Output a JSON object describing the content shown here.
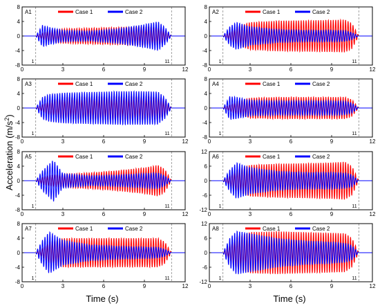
{
  "figure": {
    "ylabel": "Acceleration (m/s",
    "ylabel_sup": "2",
    "ylabel_close": ")",
    "xlabel_left": "Time (s)",
    "xlabel_right": "Time (s)"
  },
  "colors": {
    "case1": "#ff0000",
    "case2": "#0000ff",
    "marker_line": "#888888"
  },
  "chart_data": [
    {
      "type": "line",
      "panel": "A1",
      "title": "A1",
      "xlim": [
        0,
        12
      ],
      "ylim": [
        -8,
        8
      ],
      "xticks": [
        0,
        3,
        6,
        9,
        12
      ],
      "yticks": [
        8,
        4,
        0,
        -4,
        -8
      ],
      "markers": [
        {
          "x": 1,
          "label": "1"
        },
        {
          "x": 11,
          "label": "11"
        }
      ],
      "series": [
        {
          "name": "Case 1",
          "color": "#ff0000",
          "envelope": {
            "x": [
              1.0,
              1.5,
              2.0,
              3.0,
              5.0,
              7.0,
              9.0,
              10.0,
              10.5,
              11.0
            ],
            "amp": [
              0,
              0.8,
              1.6,
              2.0,
              2.2,
              2.4,
              2.6,
              2.5,
              1.8,
              0
            ]
          }
        },
        {
          "name": "Case 2",
          "color": "#0000ff",
          "envelope": {
            "x": [
              1.0,
              1.5,
              2.0,
              3.0,
              5.0,
              7.0,
              9.0,
              10.0,
              10.5,
              11.0
            ],
            "amp": [
              0,
              3.0,
              2.4,
              1.6,
              1.4,
              2.0,
              3.2,
              4.0,
              2.5,
              0
            ]
          }
        }
      ]
    },
    {
      "type": "line",
      "panel": "A2",
      "title": "A2",
      "xlim": [
        0,
        12
      ],
      "ylim": [
        -8,
        8
      ],
      "xticks": [
        0,
        3,
        6,
        9,
        12
      ],
      "yticks": [
        8,
        4,
        0,
        -4,
        -8
      ],
      "markers": [
        {
          "x": 1,
          "label": "1"
        },
        {
          "x": 11,
          "label": "11"
        }
      ],
      "series": [
        {
          "name": "Case 1",
          "color": "#ff0000",
          "envelope": {
            "x": [
              1.0,
              1.5,
              2.0,
              3.0,
              5.0,
              7.0,
              9.0,
              10.0,
              10.5,
              11.0
            ],
            "amp": [
              0,
              1.0,
              2.5,
              3.8,
              4.2,
              4.3,
              4.4,
              4.5,
              3.5,
              0
            ]
          }
        },
        {
          "name": "Case 2",
          "color": "#0000ff",
          "envelope": {
            "x": [
              1.0,
              1.5,
              2.0,
              3.0,
              5.0,
              7.0,
              9.0,
              10.0,
              10.5,
              11.0
            ],
            "amp": [
              0,
              2.6,
              3.8,
              2.6,
              1.8,
              1.6,
              1.6,
              1.5,
              1.0,
              0
            ]
          }
        }
      ]
    },
    {
      "type": "line",
      "panel": "A3",
      "title": "A3",
      "xlim": [
        0,
        12
      ],
      "ylim": [
        -8,
        8
      ],
      "xticks": [
        0,
        3,
        6,
        9,
        12
      ],
      "yticks": [
        8,
        4,
        0,
        -4,
        -8
      ],
      "markers": [
        {
          "x": 1,
          "label": "1"
        },
        {
          "x": 11,
          "label": "11"
        }
      ],
      "series": [
        {
          "name": "Case 1",
          "color": "#ff0000",
          "envelope": {
            "x": [
              1.0,
              1.5,
              2.0,
              3.0,
              5.0,
              7.0,
              9.0,
              10.0,
              10.5,
              11.0
            ],
            "amp": [
              0,
              1.0,
              2.0,
              3.0,
              3.2,
              3.3,
              3.3,
              3.2,
              2.4,
              0
            ]
          }
        },
        {
          "name": "Case 2",
          "color": "#0000ff",
          "envelope": {
            "x": [
              1.0,
              1.5,
              2.0,
              3.0,
              5.0,
              7.0,
              9.0,
              10.0,
              10.5,
              11.0
            ],
            "amp": [
              0,
              3.0,
              3.8,
              4.2,
              4.4,
              4.6,
              4.6,
              4.5,
              3.0,
              0
            ]
          }
        }
      ]
    },
    {
      "type": "line",
      "panel": "A4",
      "title": "A4",
      "xlim": [
        0,
        12
      ],
      "ylim": [
        -8,
        8
      ],
      "xticks": [
        0,
        3,
        6,
        9,
        12
      ],
      "yticks": [
        8,
        4,
        0,
        -4,
        -8
      ],
      "markers": [
        {
          "x": 1,
          "label": "1"
        },
        {
          "x": 11,
          "label": "11"
        }
      ],
      "series": [
        {
          "name": "Case 1",
          "color": "#ff0000",
          "envelope": {
            "x": [
              1.0,
              1.5,
              2.0,
              3.0,
              5.0,
              7.0,
              9.0,
              10.0,
              10.5,
              11.0
            ],
            "amp": [
              0,
              0.8,
              1.8,
              2.8,
              3.0,
              3.0,
              3.0,
              3.0,
              2.3,
              0
            ]
          }
        },
        {
          "name": "Case 2",
          "color": "#0000ff",
          "envelope": {
            "x": [
              1.0,
              1.5,
              2.0,
              3.0,
              5.0,
              7.0,
              9.0,
              10.0,
              10.5,
              11.0
            ],
            "amp": [
              0,
              3.2,
              3.0,
              2.2,
              2.0,
              2.0,
              2.0,
              1.9,
              1.4,
              0
            ]
          }
        }
      ]
    },
    {
      "type": "line",
      "panel": "A5",
      "title": "A5",
      "xlim": [
        0,
        12
      ],
      "ylim": [
        -8,
        8
      ],
      "xticks": [
        0,
        3,
        6,
        9,
        12
      ],
      "yticks": [
        8,
        4,
        0,
        -4,
        -8
      ],
      "markers": [
        {
          "x": 1,
          "label": "1"
        },
        {
          "x": 11,
          "label": "11"
        }
      ],
      "series": [
        {
          "name": "Case 1",
          "color": "#ff0000",
          "envelope": {
            "x": [
              1.0,
              1.5,
              2.0,
              3.0,
              5.0,
              7.0,
              9.0,
              10.0,
              10.5,
              11.0
            ],
            "amp": [
              0,
              1.0,
              1.4,
              1.8,
              2.2,
              2.8,
              3.6,
              4.3,
              3.2,
              0
            ]
          }
        },
        {
          "name": "Case 2",
          "color": "#0000ff",
          "envelope": {
            "x": [
              1.0,
              1.5,
              2.0,
              2.3,
              3.0,
              5.0,
              7.0,
              9.0,
              10.0,
              10.5,
              11.0
            ],
            "amp": [
              0,
              2.8,
              4.6,
              5.8,
              2.0,
              1.4,
              1.6,
              2.0,
              2.2,
              1.4,
              0
            ]
          }
        }
      ]
    },
    {
      "type": "line",
      "panel": "A6",
      "title": "A6",
      "xlim": [
        0,
        12
      ],
      "ylim": [
        -12,
        12
      ],
      "xticks": [
        0,
        3,
        6,
        9,
        12
      ],
      "yticks": [
        12,
        6,
        0,
        -6,
        -12
      ],
      "markers": [
        {
          "x": 1,
          "label": "1"
        },
        {
          "x": 11,
          "label": "11"
        }
      ],
      "series": [
        {
          "name": "Case 1",
          "color": "#ff0000",
          "envelope": {
            "x": [
              1.0,
              1.5,
              2.0,
              3.0,
              5.0,
              7.0,
              9.0,
              10.0,
              10.5,
              11.0
            ],
            "amp": [
              0,
              2.0,
              4.5,
              6.5,
              7.0,
              7.2,
              7.5,
              7.8,
              6.0,
              0
            ]
          }
        },
        {
          "name": "Case 2",
          "color": "#0000ff",
          "envelope": {
            "x": [
              1.0,
              1.5,
              2.0,
              3.0,
              5.0,
              7.0,
              9.0,
              10.0,
              10.5,
              11.0
            ],
            "amp": [
              0,
              4.5,
              7.5,
              5.5,
              4.0,
              3.5,
              3.5,
              3.2,
              2.5,
              0
            ]
          }
        }
      ]
    },
    {
      "type": "line",
      "panel": "A7",
      "title": "A7",
      "xlim": [
        0,
        12
      ],
      "ylim": [
        -8,
        8
      ],
      "xticks": [
        0,
        3,
        6,
        9,
        12
      ],
      "yticks": [
        8,
        4,
        0,
        -4,
        -8
      ],
      "markers": [
        {
          "x": 1,
          "label": "1"
        },
        {
          "x": 11,
          "label": "11"
        }
      ],
      "series": [
        {
          "name": "Case 1",
          "color": "#ff0000",
          "envelope": {
            "x": [
              1.0,
              1.5,
              2.0,
              3.0,
              5.0,
              7.0,
              9.0,
              10.0,
              10.5,
              11.0
            ],
            "amp": [
              0,
              1.2,
              3.0,
              4.0,
              4.0,
              4.0,
              4.0,
              4.0,
              3.0,
              0
            ]
          }
        },
        {
          "name": "Case 2",
          "color": "#0000ff",
          "envelope": {
            "x": [
              1.0,
              1.5,
              2.0,
              3.0,
              5.0,
              7.0,
              9.0,
              10.0,
              10.5,
              11.0
            ],
            "amp": [
              0,
              3.5,
              5.8,
              3.5,
              2.2,
              1.8,
              1.6,
              1.5,
              1.0,
              0
            ]
          }
        }
      ]
    },
    {
      "type": "line",
      "panel": "A8",
      "title": "A8",
      "xlim": [
        0,
        12
      ],
      "ylim": [
        -12,
        12
      ],
      "xticks": [
        0,
        3,
        6,
        9,
        12
      ],
      "yticks": [
        12,
        6,
        0,
        -6,
        -12
      ],
      "markers": [
        {
          "x": 1,
          "label": "1"
        },
        {
          "x": 11,
          "label": "11"
        }
      ],
      "series": [
        {
          "name": "Case 1",
          "color": "#ff0000",
          "envelope": {
            "x": [
              1.0,
              1.5,
              2.0,
              3.0,
              5.0,
              7.0,
              9.0,
              10.0,
              10.5,
              11.0
            ],
            "amp": [
              0,
              3.0,
              6.5,
              8.5,
              8.8,
              8.5,
              8.2,
              8.0,
              6.0,
              0
            ]
          }
        },
        {
          "name": "Case 2",
          "color": "#0000ff",
          "envelope": {
            "x": [
              1.0,
              1.5,
              2.0,
              3.0,
              5.0,
              7.0,
              9.0,
              10.0,
              10.5,
              11.0
            ],
            "amp": [
              0,
              6.0,
              9.0,
              8.0,
              6.0,
              5.0,
              4.5,
              4.0,
              3.0,
              0
            ]
          }
        }
      ]
    }
  ]
}
